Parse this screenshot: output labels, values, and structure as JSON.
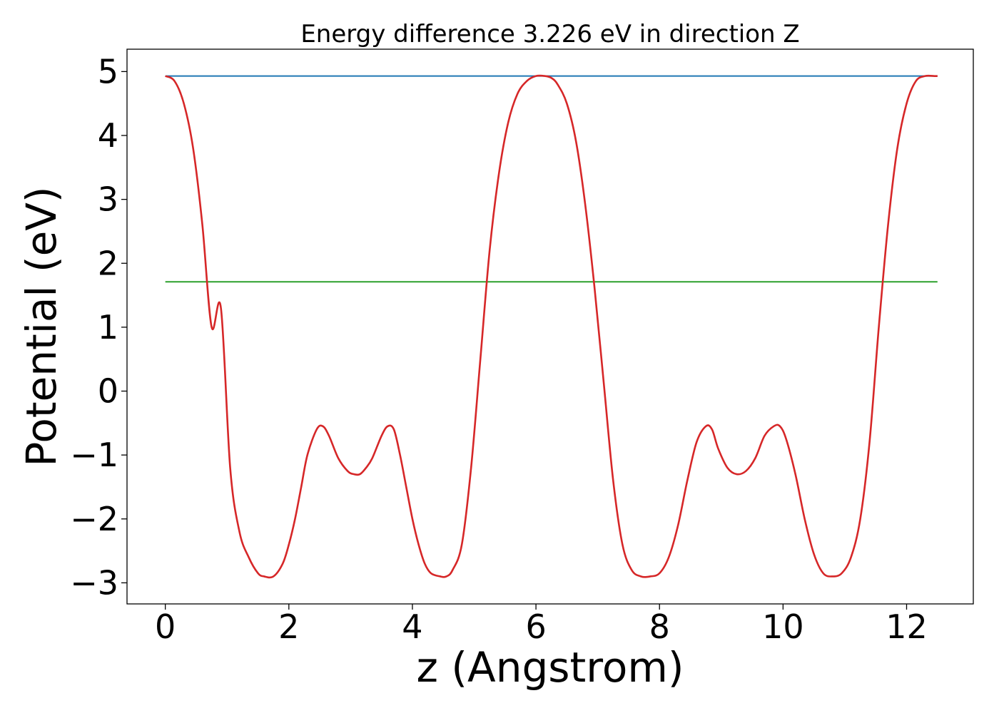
{
  "chart_data": {
    "type": "line",
    "title": "Energy difference 3.226 eV in direction Z",
    "xlabel": "z (Angstrom)",
    "ylabel": "Potential (eV)",
    "xlim": [
      -0.62,
      13.08
    ],
    "ylim": [
      -3.33,
      5.35
    ],
    "xticks": [
      0,
      2,
      4,
      6,
      8,
      10,
      12
    ],
    "xtick_labels": [
      "0",
      "2",
      "4",
      "6",
      "8",
      "10",
      "12"
    ],
    "yticks": [
      -3,
      -2,
      -1,
      0,
      1,
      2,
      3,
      4,
      5
    ],
    "ytick_labels": [
      "−3",
      "−2",
      "−1",
      "0",
      "1",
      "2",
      "3",
      "4",
      "5"
    ],
    "grid": false,
    "legend": false,
    "series": [
      {
        "color": "#d62728",
        "style": "curve",
        "x": [
          0,
          0.15,
          0.3,
          0.45,
          0.6,
          0.75,
          0.9,
          1.05,
          1.2,
          1.35,
          1.5,
          1.6,
          1.75,
          1.9,
          2.0,
          2.1,
          2.2,
          2.3,
          2.45,
          2.55,
          2.65,
          2.8,
          2.95,
          3.05,
          3.15,
          3.25,
          3.35,
          3.5,
          3.6,
          3.7,
          3.8,
          3.9,
          4.0,
          4.1,
          4.2,
          4.3,
          4.45,
          4.55,
          4.65,
          4.8,
          4.95,
          5.1,
          5.25,
          5.4,
          5.55,
          5.7,
          5.85,
          6.0,
          6.15,
          6.25,
          6.35,
          6.5,
          6.65,
          6.8,
          6.95,
          7.1,
          7.25,
          7.4,
          7.55,
          7.7,
          7.85,
          8.0,
          8.15,
          8.3,
          8.45,
          8.6,
          8.75,
          8.85,
          8.95,
          9.1,
          9.25,
          9.4,
          9.55,
          9.7,
          9.85,
          9.95,
          10.05,
          10.2,
          10.35,
          10.5,
          10.65,
          10.8,
          10.95,
          11.1,
          11.25,
          11.4,
          11.55,
          11.7,
          11.85,
          12.0,
          12.15,
          12.3,
          12.45,
          12.5
        ],
        "y": [
          4.93,
          4.85,
          4.5,
          3.8,
          2.6,
          1.0,
          1.3,
          -1.2,
          -2.2,
          -2.6,
          -2.85,
          -2.9,
          -2.9,
          -2.7,
          -2.4,
          -2.0,
          -1.5,
          -1.0,
          -0.6,
          -0.55,
          -0.7,
          -1.05,
          -1.25,
          -1.3,
          -1.3,
          -1.2,
          -1.05,
          -0.7,
          -0.55,
          -0.6,
          -1.0,
          -1.5,
          -2.0,
          -2.4,
          -2.7,
          -2.85,
          -2.9,
          -2.9,
          -2.8,
          -2.4,
          -1.2,
          0.5,
          2.2,
          3.4,
          4.2,
          4.65,
          4.85,
          4.93,
          4.93,
          4.9,
          4.8,
          4.5,
          3.9,
          2.9,
          1.6,
          0.1,
          -1.4,
          -2.4,
          -2.8,
          -2.9,
          -2.9,
          -2.85,
          -2.6,
          -2.1,
          -1.4,
          -0.8,
          -0.55,
          -0.6,
          -0.9,
          -1.2,
          -1.3,
          -1.25,
          -1.05,
          -0.7,
          -0.55,
          -0.55,
          -0.75,
          -1.3,
          -2.0,
          -2.55,
          -2.85,
          -2.9,
          -2.85,
          -2.6,
          -2.0,
          -0.8,
          1.0,
          2.6,
          3.8,
          4.5,
          4.85,
          4.93,
          4.93,
          4.93
        ]
      },
      {
        "color": "#1f77b4",
        "style": "line",
        "x": [
          0,
          12.5
        ],
        "y": [
          4.93,
          4.93
        ]
      },
      {
        "color": "#2ca02c",
        "style": "line",
        "x": [
          0,
          12.5
        ],
        "y": [
          1.71,
          1.71
        ]
      }
    ]
  }
}
